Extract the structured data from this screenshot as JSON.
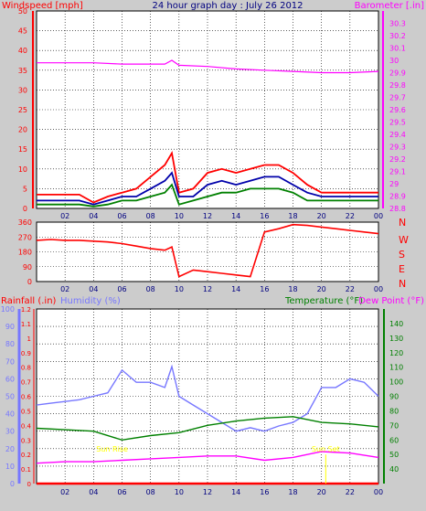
{
  "page": {
    "title": "24 hour graph day : July 26 2012"
  },
  "colors": {
    "background": "#cccccc",
    "plot_background": "#ffffff",
    "wind": "#ff0000",
    "gust_avg": "#0000aa",
    "wind_green": "#008000",
    "barometer": "#ff00ff",
    "direction": "#ff0000",
    "humidity": "#7777ff",
    "temperature": "#008000",
    "dewpoint": "#ff00ff",
    "rain": "#ff0000",
    "sun_label": "#ffff00",
    "axis_text": "#000080"
  },
  "chart_data": [
    {
      "type": "line",
      "id": "wind-barometer",
      "x_ticks": [
        "02",
        "04",
        "06",
        "08",
        "10",
        "12",
        "14",
        "16",
        "18",
        "20",
        "22",
        "00"
      ],
      "left_axis": {
        "label": "Windspeed [mph]",
        "ylim": [
          0,
          50
        ],
        "ticks": [
          "0",
          "5",
          "10",
          "15",
          "20",
          "25",
          "30",
          "35",
          "40",
          "45",
          "50"
        ]
      },
      "right_axis": {
        "label": "Barometer [.in]",
        "ylim": [
          28.8,
          30.4
        ],
        "ticks": [
          "28.8",
          "28.9",
          "29",
          "29.1",
          "29.2",
          "29.3",
          "29.4",
          "29.5",
          "29.6",
          "29.7",
          "29.8",
          "29.9",
          "30",
          "30.1",
          "30.2",
          "30.3"
        ]
      },
      "series": [
        {
          "x": [
            0,
            1,
            2,
            3,
            4,
            5,
            6,
            7,
            8,
            9,
            9.5,
            10,
            11,
            12,
            13,
            14,
            15,
            16,
            17,
            18,
            19,
            20,
            21,
            22,
            23,
            24
          ],
          "values": [
            3.5,
            3.5,
            3.5,
            3.5,
            1.5,
            3,
            4,
            5,
            8,
            11,
            14,
            4,
            5,
            9,
            10,
            9,
            10,
            11,
            11,
            9,
            6,
            4,
            4,
            4,
            4,
            4
          ]
        },
        {
          "x": [
            0,
            1,
            2,
            3,
            4,
            5,
            6,
            7,
            8,
            9,
            9.5,
            10,
            11,
            12,
            13,
            14,
            15,
            16,
            17,
            18,
            19,
            20,
            21,
            22,
            23,
            24
          ],
          "values": [
            2,
            2,
            2,
            2,
            1,
            2,
            3,
            3,
            5,
            7,
            9,
            3,
            3,
            6,
            7,
            6,
            7,
            8,
            8,
            6,
            4,
            3,
            3,
            3,
            3,
            3
          ]
        },
        {
          "x": [
            0,
            1,
            2,
            3,
            4,
            5,
            6,
            7,
            8,
            9,
            9.5,
            10,
            11,
            12,
            13,
            14,
            15,
            16,
            17,
            18,
            19,
            20,
            21,
            22,
            23,
            24
          ],
          "values": [
            1,
            1,
            1,
            1,
            0.5,
            1,
            2,
            2,
            3,
            4,
            6,
            1,
            2,
            3,
            4,
            4,
            5,
            5,
            5,
            4,
            2,
            2,
            2,
            2,
            2,
            2
          ]
        },
        {
          "x": [
            0,
            2,
            4,
            6,
            8,
            9,
            9.5,
            10,
            12,
            14,
            16,
            18,
            20,
            22,
            24
          ],
          "values": [
            29.98,
            29.98,
            29.98,
            29.97,
            29.97,
            29.97,
            30.0,
            29.96,
            29.95,
            29.93,
            29.92,
            29.91,
            29.9,
            29.9,
            29.91
          ]
        }
      ]
    },
    {
      "type": "line",
      "id": "wind-direction",
      "x_ticks": [
        "02",
        "04",
        "06",
        "08",
        "10",
        "12",
        "14",
        "16",
        "18",
        "20",
        "22",
        "00"
      ],
      "left_axis": {
        "ylim": [
          0,
          360
        ],
        "ticks": [
          "0",
          "90",
          "180",
          "270",
          "360"
        ]
      },
      "right_axis": {
        "ticks": [
          "N",
          "W",
          "S",
          "E",
          "N"
        ]
      },
      "series": [
        {
          "x": [
            0,
            1,
            2,
            3,
            4,
            5,
            6,
            7,
            8,
            9,
            9.5,
            10,
            11,
            12,
            13,
            14,
            15,
            16,
            17,
            18,
            19,
            20,
            21,
            22,
            23,
            24
          ],
          "values": [
            250,
            255,
            250,
            250,
            245,
            240,
            230,
            215,
            200,
            190,
            210,
            30,
            70,
            60,
            50,
            40,
            30,
            300,
            320,
            345,
            340,
            330,
            320,
            310,
            300,
            290
          ]
        }
      ]
    },
    {
      "type": "line",
      "id": "temp-humidity-rain",
      "x_ticks": [
        "02",
        "04",
        "06",
        "08",
        "10",
        "12",
        "14",
        "16",
        "18",
        "20",
        "22",
        "00"
      ],
      "left_axis": {
        "label_rain": "Rainfall (.in)",
        "label_humidity": "Humidity (%)",
        "rain_ticks": [
          "0",
          "0.1",
          "0.2",
          "0.3",
          "0.4",
          "0.5",
          "0.6",
          "0.7",
          "0.8",
          "0.9",
          "1",
          "1.1",
          "1.2"
        ],
        "humidity_ylim": [
          0,
          100
        ],
        "humidity_ticks": [
          "0",
          "10",
          "20",
          "30",
          "40",
          "50",
          "60",
          "70",
          "80",
          "90",
          "100"
        ]
      },
      "right_axis": {
        "label_temperature": "Temperature (°F)",
        "label_dewpoint": "Dew Point (°F)",
        "ylim": [
          30,
          150
        ],
        "ticks": [
          "40",
          "50",
          "60",
          "70",
          "80",
          "90",
          "100",
          "110",
          "120",
          "130",
          "140"
        ]
      },
      "annotations": [
        {
          "text": "Sun Rise",
          "x": 5.3,
          "y": 0.22
        },
        {
          "text": "Sun Set",
          "x": 20.3,
          "y": 0.22
        }
      ],
      "series": [
        {
          "x": [
            0,
            1,
            2,
            3,
            4,
            5,
            6,
            7,
            8,
            9,
            9.5,
            10,
            11,
            12,
            13,
            14,
            15,
            16,
            17,
            18,
            19,
            20,
            21,
            22,
            23,
            24
          ],
          "values": [
            45,
            46,
            47,
            48,
            50,
            52,
            65,
            58,
            58,
            55,
            67,
            50,
            45,
            40,
            35,
            30,
            32,
            30,
            33,
            35,
            40,
            55,
            55,
            60,
            58,
            50
          ]
        },
        {
          "x": [
            0,
            2,
            4,
            6,
            8,
            10,
            12,
            14,
            16,
            18,
            20,
            22,
            24
          ],
          "values": [
            68,
            67,
            66,
            60,
            63,
            65,
            70,
            73,
            75,
            76,
            72,
            71,
            69
          ]
        },
        {
          "x": [
            0,
            2,
            4,
            6,
            8,
            10,
            12,
            14,
            16,
            18,
            20,
            22,
            24
          ],
          "values": [
            44,
            45,
            45,
            46,
            47,
            48,
            49,
            49,
            46,
            48,
            52,
            51,
            48
          ]
        },
        {
          "x": [
            0,
            24
          ],
          "values": [
            0,
            0
          ]
        }
      ]
    }
  ]
}
